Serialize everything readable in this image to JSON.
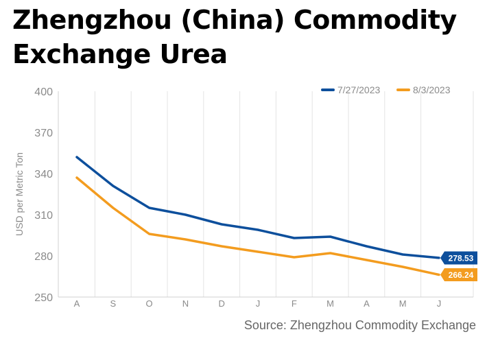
{
  "title_lines": [
    "Zhengzhou (China) Commodity",
    "Exchange Urea"
  ],
  "source": "Source: Zhengzhou Commodity Exchange",
  "chart_data": {
    "type": "line",
    "title": "Zhengzhou (China) Commodity Exchange Urea",
    "xlabel": "",
    "ylabel": "USD per Metric Ton",
    "categories": [
      "A",
      "S",
      "O",
      "N",
      "D",
      "J",
      "F",
      "M",
      "A",
      "M",
      "J"
    ],
    "ylim": [
      250,
      400
    ],
    "yticks": [
      250,
      280,
      310,
      340,
      370,
      400
    ],
    "grid": "vertical",
    "legend_position": "top-right",
    "series": [
      {
        "name": "7/27/2023",
        "color": "#0d4f9c",
        "values": [
          352,
          331,
          315,
          310,
          303,
          299,
          293,
          294,
          287,
          281,
          278.53
        ],
        "end_label": "278.53"
      },
      {
        "name": "8/3/2023",
        "color": "#f39c1f",
        "values": [
          337,
          315,
          296,
          292,
          287,
          283,
          279,
          282,
          277,
          272,
          266.24
        ],
        "end_label": "266.24"
      }
    ]
  }
}
